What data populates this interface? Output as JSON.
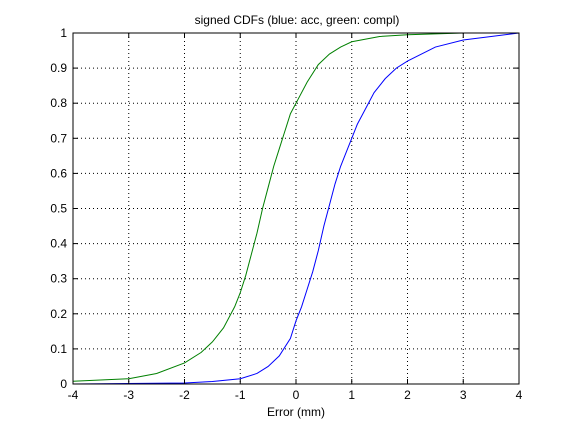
{
  "chart_data": {
    "type": "line",
    "title": "signed CDFs (blue: acc, green: compl)",
    "xlabel": "Error (mm)",
    "ylabel": "",
    "xlim": [
      -4,
      4
    ],
    "ylim": [
      0,
      1
    ],
    "xticks": [
      "-4",
      "-3",
      "-2",
      "-1",
      "0",
      "1",
      "2",
      "3",
      "4"
    ],
    "yticks": [
      "0",
      "0.1",
      "0.2",
      "0.3",
      "0.4",
      "0.5",
      "0.6",
      "0.7",
      "0.8",
      "0.9",
      "1"
    ],
    "grid": true,
    "series": [
      {
        "color": "#0000ff",
        "x": [
          -4,
          -2,
          -1.5,
          -1,
          -0.7,
          -0.5,
          -0.3,
          -0.1,
          0,
          0.1,
          0.2,
          0.3,
          0.4,
          0.5,
          0.6,
          0.7,
          0.8,
          0.9,
          1.0,
          1.1,
          1.2,
          1.4,
          1.6,
          1.8,
          2.0,
          2.5,
          3.0,
          3.5,
          4.0
        ],
        "y": [
          0.0,
          0.003,
          0.007,
          0.015,
          0.03,
          0.05,
          0.08,
          0.13,
          0.18,
          0.22,
          0.27,
          0.32,
          0.38,
          0.45,
          0.51,
          0.57,
          0.62,
          0.66,
          0.7,
          0.74,
          0.77,
          0.83,
          0.87,
          0.9,
          0.92,
          0.96,
          0.98,
          0.99,
          1.0
        ]
      },
      {
        "color": "#008000",
        "x": [
          -4,
          -3,
          -2.5,
          -2,
          -1.7,
          -1.5,
          -1.3,
          -1.1,
          -1.0,
          -0.9,
          -0.8,
          -0.7,
          -0.6,
          -0.5,
          -0.4,
          -0.3,
          -0.2,
          -0.1,
          0,
          0.2,
          0.4,
          0.6,
          0.8,
          1.0,
          1.5,
          2.0,
          3.0,
          4.0
        ],
        "y": [
          0.008,
          0.015,
          0.03,
          0.06,
          0.09,
          0.12,
          0.16,
          0.22,
          0.26,
          0.31,
          0.37,
          0.43,
          0.5,
          0.56,
          0.62,
          0.67,
          0.72,
          0.77,
          0.8,
          0.86,
          0.91,
          0.94,
          0.96,
          0.975,
          0.99,
          0.995,
          1.0,
          1.0
        ]
      }
    ]
  }
}
